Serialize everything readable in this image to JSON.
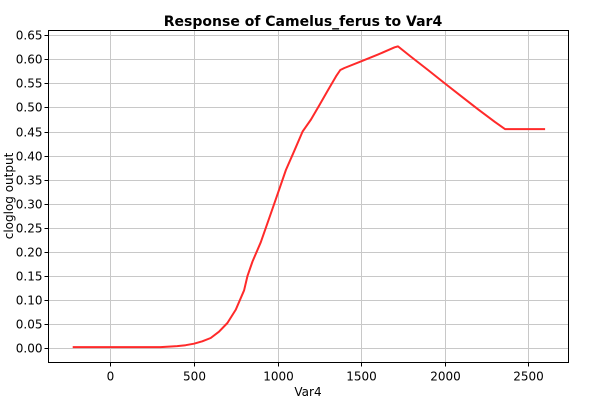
{
  "chart_data": {
    "type": "line",
    "title": "Response of Camelus_ferus to Var4",
    "xlabel": "Var4",
    "ylabel": "cloglog output",
    "xlim": [
      -370,
      2740
    ],
    "ylim": [
      -0.03,
      0.66
    ],
    "x_ticks": [
      0,
      500,
      1000,
      1500,
      2000,
      2500
    ],
    "y_ticks": [
      0.0,
      0.05,
      0.1,
      0.15,
      0.2,
      0.25,
      0.3,
      0.35,
      0.4,
      0.45,
      0.5,
      0.55,
      0.6,
      0.65
    ],
    "y_tick_labels": [
      "0.00",
      "0.05",
      "0.10",
      "0.15",
      "0.20",
      "0.25",
      "0.30",
      "0.35",
      "0.40",
      "0.45",
      "0.50",
      "0.55",
      "0.60",
      "0.65"
    ],
    "grid": true,
    "line_color": "#ff2a2a",
    "series": [
      {
        "x": [
          -225,
          0,
          300,
          350,
          400,
          450,
          500,
          550,
          600,
          650,
          700,
          750,
          800,
          820,
          850,
          900,
          950,
          1000,
          1050,
          1100,
          1150,
          1200,
          1250,
          1300,
          1350,
          1375,
          1400,
          1500,
          1600,
          1700,
          1720,
          1800,
          1900,
          2000,
          2100,
          2200,
          2300,
          2360,
          2400,
          2500,
          2600
        ],
        "y": [
          0.002,
          0.002,
          0.002,
          0.003,
          0.004,
          0.006,
          0.009,
          0.014,
          0.021,
          0.034,
          0.052,
          0.08,
          0.12,
          0.15,
          0.18,
          0.22,
          0.27,
          0.32,
          0.37,
          0.41,
          0.45,
          0.475,
          0.505,
          0.535,
          0.565,
          0.578,
          0.582,
          0.596,
          0.61,
          0.625,
          0.627,
          0.605,
          0.578,
          0.55,
          0.523,
          0.496,
          0.47,
          0.455,
          0.455,
          0.455,
          0.455
        ]
      }
    ]
  }
}
